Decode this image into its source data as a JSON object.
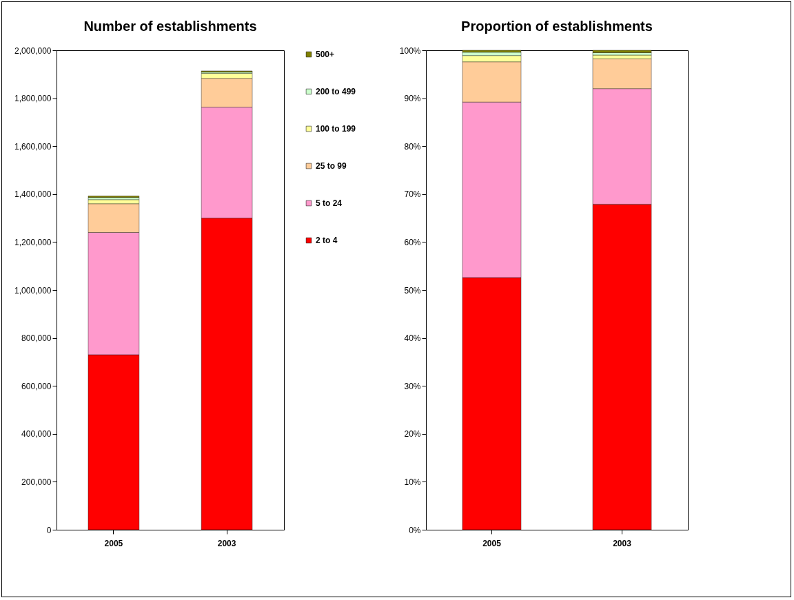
{
  "chart_data": [
    {
      "type": "bar",
      "title": "Number of establishments",
      "stacked": true,
      "categories": [
        "2005",
        "2003"
      ],
      "series": [
        {
          "name": "2 to 4",
          "color": "#ff0000",
          "values": [
            730000,
            1300000
          ]
        },
        {
          "name": "5 to 24",
          "color": "#ff99cc",
          "values": [
            510000,
            463000
          ]
        },
        {
          "name": "25 to 99",
          "color": "#ffcc99",
          "values": [
            120000,
            120000
          ]
        },
        {
          "name": "100 to 199",
          "color": "#ffff99",
          "values": [
            17000,
            21000
          ]
        },
        {
          "name": "200 to 499",
          "color": "#ccffcc",
          "values": [
            9000,
            5000
          ]
        },
        {
          "name": "500+",
          "color": "#808000",
          "values": [
            6000,
            5000
          ]
        }
      ],
      "ylim": [
        0,
        2000000
      ],
      "yticks": [
        {
          "value": 0,
          "label": "0"
        },
        {
          "value": 200000,
          "label": "200,000"
        },
        {
          "value": 400000,
          "label": "400,000"
        },
        {
          "value": 600000,
          "label": "600,000"
        },
        {
          "value": 800000,
          "label": "800,000"
        },
        {
          "value": 1000000,
          "label": "1,000,000"
        },
        {
          "value": 1200000,
          "label": "1,200,000"
        },
        {
          "value": 1400000,
          "label": "1,400,000"
        },
        {
          "value": 1600000,
          "label": "1,600,000"
        },
        {
          "value": 1800000,
          "label": "1,800,000"
        },
        {
          "value": 2000000,
          "label": "2,000,000"
        }
      ],
      "legend": "right"
    },
    {
      "type": "bar",
      "title": "Proportion of establishments",
      "stacked": true,
      "categories": [
        "2005",
        "2003"
      ],
      "series": [
        {
          "color": "#ff0000",
          "values": [
            52.6,
            67.9
          ]
        },
        {
          "color": "#ff99cc",
          "values": [
            36.6,
            24.1
          ]
        },
        {
          "color": "#ffcc99",
          "values": [
            8.4,
            6.2
          ]
        },
        {
          "color": "#ffff99",
          "values": [
            1.3,
            0.8
          ]
        },
        {
          "color": "#ccffcc",
          "values": [
            0.7,
            0.5
          ]
        },
        {
          "color": "#808000",
          "values": [
            0.4,
            0.5
          ]
        }
      ],
      "ylim": [
        0,
        100
      ],
      "yticks": [
        {
          "value": 0,
          "label": "0%"
        },
        {
          "value": 10,
          "label": "10%"
        },
        {
          "value": 20,
          "label": "20%"
        },
        {
          "value": 30,
          "label": "30%"
        },
        {
          "value": 40,
          "label": "40%"
        },
        {
          "value": 50,
          "label": "50%"
        },
        {
          "value": 60,
          "label": "60%"
        },
        {
          "value": 70,
          "label": "70%"
        },
        {
          "value": 80,
          "label": "80%"
        },
        {
          "value": 90,
          "label": "90%"
        },
        {
          "value": 100,
          "label": "100%"
        }
      ]
    }
  ]
}
